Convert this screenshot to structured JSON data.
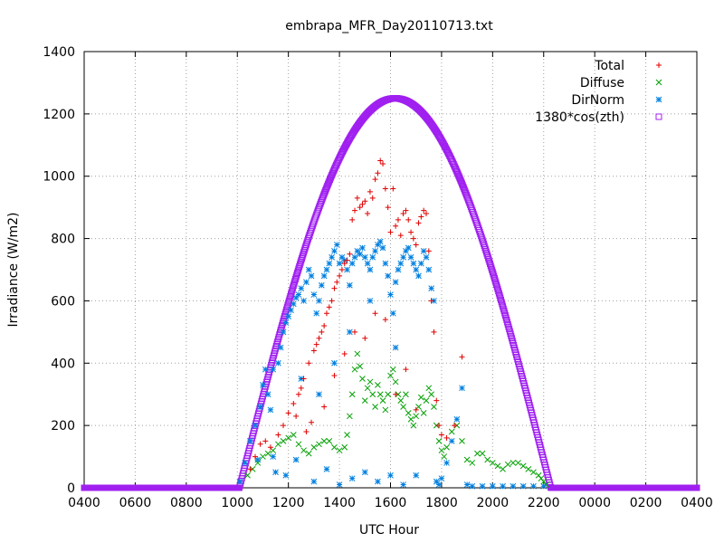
{
  "chart_data": {
    "type": "scatter",
    "title": "embrapa_MFR_Day20110713.txt",
    "xlabel": "UTC Hour",
    "ylabel": "Irradiance (W/m2)",
    "xlim": [
      0,
      24
    ],
    "ylim": [
      0,
      1400
    ],
    "x_ticks": [
      {
        "pos": 0,
        "label": "0400"
      },
      {
        "pos": 2,
        "label": "0600"
      },
      {
        "pos": 4,
        "label": "0800"
      },
      {
        "pos": 6,
        "label": "1000"
      },
      {
        "pos": 8,
        "label": "1200"
      },
      {
        "pos": 10,
        "label": "1400"
      },
      {
        "pos": 12,
        "label": "1600"
      },
      {
        "pos": 14,
        "label": "1800"
      },
      {
        "pos": 16,
        "label": "2000"
      },
      {
        "pos": 18,
        "label": "2200"
      },
      {
        "pos": 20,
        "label": "0000"
      },
      {
        "pos": 22,
        "label": "0200"
      },
      {
        "pos": 24,
        "label": "0400"
      }
    ],
    "y_ticks": [
      {
        "value": 0,
        "label": "0"
      },
      {
        "value": 200,
        "label": "200"
      },
      {
        "value": 400,
        "label": "400"
      },
      {
        "value": 600,
        "label": "600"
      },
      {
        "value": 800,
        "label": "800"
      },
      {
        "value": 1000,
        "label": "1000"
      },
      {
        "value": 1200,
        "label": "1200"
      },
      {
        "value": 1400,
        "label": "1400"
      }
    ],
    "grid": true,
    "legend_position": "top-right",
    "series": [
      {
        "name": "Total",
        "marker": "plus",
        "color": "#e00000",
        "points": [
          [
            6.5,
            60
          ],
          [
            6.7,
            100
          ],
          [
            6.9,
            140
          ],
          [
            7.1,
            150
          ],
          [
            7.3,
            130
          ],
          [
            7.6,
            170
          ],
          [
            7.8,
            200
          ],
          [
            8.0,
            240
          ],
          [
            8.2,
            270
          ],
          [
            8.3,
            230
          ],
          [
            8.4,
            300
          ],
          [
            8.5,
            320
          ],
          [
            8.6,
            350
          ],
          [
            8.8,
            400
          ],
          [
            9.0,
            440
          ],
          [
            9.1,
            460
          ],
          [
            9.2,
            480
          ],
          [
            9.3,
            500
          ],
          [
            9.4,
            520
          ],
          [
            9.5,
            560
          ],
          [
            9.6,
            580
          ],
          [
            9.7,
            600
          ],
          [
            9.8,
            640
          ],
          [
            9.9,
            660
          ],
          [
            10.0,
            680
          ],
          [
            10.1,
            700
          ],
          [
            10.2,
            720
          ],
          [
            10.3,
            730
          ],
          [
            10.4,
            750
          ],
          [
            10.5,
            860
          ],
          [
            10.6,
            890
          ],
          [
            10.7,
            930
          ],
          [
            10.8,
            900
          ],
          [
            10.9,
            910
          ],
          [
            11.0,
            920
          ],
          [
            11.1,
            880
          ],
          [
            11.2,
            950
          ],
          [
            11.3,
            930
          ],
          [
            11.4,
            990
          ],
          [
            11.5,
            1010
          ],
          [
            11.6,
            1050
          ],
          [
            11.7,
            1040
          ],
          [
            11.8,
            960
          ],
          [
            11.9,
            900
          ],
          [
            12.0,
            820
          ],
          [
            12.1,
            960
          ],
          [
            12.2,
            840
          ],
          [
            12.3,
            860
          ],
          [
            12.4,
            810
          ],
          [
            12.5,
            880
          ],
          [
            12.6,
            890
          ],
          [
            12.7,
            860
          ],
          [
            12.8,
            820
          ],
          [
            12.9,
            800
          ],
          [
            13.0,
            780
          ],
          [
            13.1,
            850
          ],
          [
            13.2,
            870
          ],
          [
            13.3,
            890
          ],
          [
            13.4,
            880
          ],
          [
            13.5,
            760
          ],
          [
            13.6,
            600
          ],
          [
            13.7,
            500
          ],
          [
            13.8,
            280
          ],
          [
            13.9,
            200
          ],
          [
            14.0,
            170
          ],
          [
            14.2,
            160
          ],
          [
            14.5,
            200
          ],
          [
            14.8,
            420
          ],
          [
            10.6,
            500
          ],
          [
            11.0,
            480
          ],
          [
            11.4,
            560
          ],
          [
            11.8,
            540
          ],
          [
            12.2,
            300
          ],
          [
            12.6,
            380
          ],
          [
            13.0,
            250
          ],
          [
            9.4,
            260
          ],
          [
            9.8,
            360
          ],
          [
            10.2,
            430
          ],
          [
            8.7,
            180
          ],
          [
            8.9,
            210
          ]
        ]
      },
      {
        "name": "Diffuse",
        "marker": "cross",
        "color": "#00a000",
        "points": [
          [
            6.4,
            40
          ],
          [
            6.6,
            60
          ],
          [
            6.8,
            80
          ],
          [
            7.0,
            100
          ],
          [
            7.2,
            110
          ],
          [
            7.4,
            120
          ],
          [
            7.6,
            140
          ],
          [
            7.8,
            150
          ],
          [
            8.0,
            160
          ],
          [
            8.2,
            170
          ],
          [
            8.4,
            140
          ],
          [
            8.6,
            120
          ],
          [
            8.8,
            110
          ],
          [
            9.0,
            130
          ],
          [
            9.2,
            140
          ],
          [
            9.4,
            150
          ],
          [
            9.6,
            150
          ],
          [
            9.8,
            130
          ],
          [
            10.0,
            120
          ],
          [
            10.2,
            130
          ],
          [
            10.3,
            170
          ],
          [
            10.4,
            230
          ],
          [
            10.5,
            300
          ],
          [
            10.6,
            380
          ],
          [
            10.7,
            430
          ],
          [
            10.8,
            390
          ],
          [
            10.9,
            350
          ],
          [
            11.0,
            280
          ],
          [
            11.1,
            320
          ],
          [
            11.2,
            340
          ],
          [
            11.3,
            300
          ],
          [
            11.4,
            260
          ],
          [
            11.5,
            330
          ],
          [
            11.6,
            300
          ],
          [
            11.7,
            280
          ],
          [
            11.8,
            250
          ],
          [
            11.9,
            300
          ],
          [
            12.0,
            360
          ],
          [
            12.1,
            380
          ],
          [
            12.2,
            340
          ],
          [
            12.3,
            300
          ],
          [
            12.4,
            280
          ],
          [
            12.5,
            260
          ],
          [
            12.6,
            300
          ],
          [
            12.7,
            240
          ],
          [
            12.8,
            220
          ],
          [
            12.9,
            200
          ],
          [
            13.0,
            230
          ],
          [
            13.1,
            260
          ],
          [
            13.2,
            290
          ],
          [
            13.3,
            240
          ],
          [
            13.4,
            280
          ],
          [
            13.5,
            320
          ],
          [
            13.6,
            300
          ],
          [
            13.7,
            260
          ],
          [
            13.8,
            200
          ],
          [
            13.9,
            150
          ],
          [
            14.0,
            120
          ],
          [
            14.1,
            100
          ],
          [
            14.2,
            130
          ],
          [
            14.4,
            180
          ],
          [
            14.6,
            200
          ],
          [
            14.8,
            150
          ],
          [
            15.0,
            90
          ],
          [
            15.2,
            80
          ],
          [
            15.4,
            110
          ],
          [
            15.6,
            110
          ],
          [
            15.8,
            90
          ],
          [
            16.0,
            80
          ],
          [
            16.2,
            70
          ],
          [
            16.4,
            60
          ],
          [
            16.6,
            75
          ],
          [
            16.8,
            80
          ],
          [
            17.0,
            80
          ],
          [
            17.2,
            70
          ],
          [
            17.4,
            60
          ],
          [
            17.6,
            50
          ],
          [
            17.8,
            40
          ],
          [
            17.9,
            30
          ],
          [
            18.0,
            20
          ],
          [
            18.1,
            10
          ]
        ]
      },
      {
        "name": "DirNorm",
        "marker": "star",
        "color": "#0080e0",
        "points": [
          [
            6.1,
            20
          ],
          [
            6.3,
            80
          ],
          [
            6.5,
            150
          ],
          [
            6.7,
            200
          ],
          [
            6.9,
            260
          ],
          [
            7.0,
            330
          ],
          [
            7.1,
            380
          ],
          [
            7.2,
            300
          ],
          [
            7.3,
            250
          ],
          [
            7.4,
            100
          ],
          [
            7.5,
            50
          ],
          [
            7.6,
            400
          ],
          [
            7.7,
            450
          ],
          [
            7.8,
            500
          ],
          [
            7.9,
            530
          ],
          [
            8.0,
            550
          ],
          [
            8.1,
            570
          ],
          [
            8.2,
            590
          ],
          [
            8.3,
            610
          ],
          [
            8.4,
            620
          ],
          [
            8.5,
            640
          ],
          [
            8.6,
            600
          ],
          [
            8.7,
            660
          ],
          [
            8.8,
            700
          ],
          [
            8.9,
            680
          ],
          [
            9.0,
            620
          ],
          [
            9.1,
            560
          ],
          [
            9.2,
            600
          ],
          [
            9.3,
            650
          ],
          [
            9.4,
            680
          ],
          [
            9.5,
            700
          ],
          [
            9.6,
            720
          ],
          [
            9.7,
            740
          ],
          [
            9.8,
            760
          ],
          [
            9.9,
            780
          ],
          [
            10.0,
            720
          ],
          [
            10.1,
            740
          ],
          [
            10.2,
            730
          ],
          [
            10.3,
            700
          ],
          [
            10.4,
            650
          ],
          [
            10.5,
            720
          ],
          [
            10.6,
            740
          ],
          [
            10.7,
            760
          ],
          [
            10.8,
            750
          ],
          [
            10.9,
            770
          ],
          [
            11.0,
            740
          ],
          [
            11.1,
            720
          ],
          [
            11.2,
            700
          ],
          [
            11.3,
            740
          ],
          [
            11.4,
            760
          ],
          [
            11.5,
            780
          ],
          [
            11.6,
            790
          ],
          [
            11.7,
            770
          ],
          [
            11.8,
            720
          ],
          [
            11.9,
            680
          ],
          [
            12.0,
            620
          ],
          [
            12.1,
            560
          ],
          [
            12.2,
            660
          ],
          [
            12.3,
            700
          ],
          [
            12.4,
            720
          ],
          [
            12.5,
            740
          ],
          [
            12.6,
            760
          ],
          [
            12.7,
            770
          ],
          [
            12.8,
            740
          ],
          [
            12.9,
            720
          ],
          [
            13.0,
            700
          ],
          [
            13.1,
            680
          ],
          [
            13.2,
            720
          ],
          [
            13.3,
            760
          ],
          [
            13.4,
            740
          ],
          [
            13.5,
            700
          ],
          [
            13.6,
            640
          ],
          [
            13.7,
            600
          ],
          [
            13.8,
            20
          ],
          [
            13.9,
            10
          ],
          [
            14.0,
            30
          ],
          [
            14.2,
            80
          ],
          [
            14.4,
            150
          ],
          [
            14.6,
            220
          ],
          [
            14.8,
            320
          ],
          [
            15.0,
            10
          ],
          [
            7.9,
            40
          ],
          [
            8.3,
            90
          ],
          [
            9.0,
            20
          ],
          [
            9.5,
            60
          ],
          [
            10.0,
            10
          ],
          [
            10.5,
            30
          ],
          [
            11.0,
            50
          ],
          [
            11.5,
            20
          ],
          [
            12.0,
            40
          ],
          [
            12.5,
            10
          ],
          [
            13.0,
            40
          ],
          [
            9.2,
            300
          ],
          [
            9.8,
            400
          ],
          [
            10.4,
            500
          ],
          [
            11.2,
            600
          ],
          [
            12.2,
            450
          ],
          [
            8.5,
            350
          ],
          [
            7.4,
            380
          ],
          [
            6.8,
            90
          ],
          [
            15.2,
            5
          ],
          [
            15.6,
            5
          ],
          [
            16.0,
            5
          ],
          [
            16.4,
            5
          ],
          [
            16.8,
            5
          ],
          [
            17.2,
            5
          ],
          [
            17.6,
            5
          ],
          [
            18.0,
            5
          ]
        ]
      },
      {
        "name": "1380*cos(zth)",
        "marker": "square",
        "color": "#a020f0",
        "points": []
      }
    ]
  }
}
